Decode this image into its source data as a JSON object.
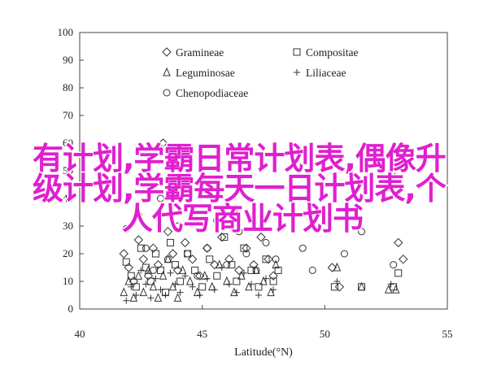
{
  "chart_data": {
    "type": "scatter",
    "title": "",
    "xlabel": "Latitude(°N)",
    "ylabel": "",
    "xlim": [
      40,
      55
    ],
    "ylim": [
      0,
      100
    ],
    "xticks": [
      "40",
      "45",
      "50",
      "55"
    ],
    "yticks": [
      "0",
      "10",
      "20",
      "30",
      "40",
      "50",
      "60",
      "70",
      "80",
      "90",
      "100"
    ],
    "grid": false,
    "legend_position": "top-center",
    "series": [
      {
        "name": "Gramineae",
        "marker": "diamond",
        "points": [
          [
            41.8,
            20
          ],
          [
            42.0,
            15
          ],
          [
            42.2,
            10
          ],
          [
            42.4,
            25
          ],
          [
            42.6,
            18
          ],
          [
            42.8,
            12
          ],
          [
            43.0,
            22
          ],
          [
            43.2,
            16
          ],
          [
            43.4,
            60
          ],
          [
            43.6,
            28
          ],
          [
            43.8,
            20
          ],
          [
            44.0,
            14
          ],
          [
            44.3,
            24
          ],
          [
            44.6,
            18
          ],
          [
            44.9,
            12
          ],
          [
            45.2,
            22
          ],
          [
            45.5,
            16
          ],
          [
            45.8,
            26
          ],
          [
            46.1,
            18
          ],
          [
            46.3,
            36
          ],
          [
            46.5,
            14
          ],
          [
            46.8,
            22
          ],
          [
            47.1,
            16
          ],
          [
            47.4,
            26
          ],
          [
            47.7,
            18
          ],
          [
            47.9,
            12
          ],
          [
            50.3,
            15
          ],
          [
            50.6,
            8
          ],
          [
            52.8,
            48
          ],
          [
            53.0,
            24
          ],
          [
            53.2,
            18
          ]
        ]
      },
      {
        "name": "Compositae",
        "marker": "square",
        "points": [
          [
            41.9,
            17
          ],
          [
            42.1,
            12
          ],
          [
            42.3,
            8
          ],
          [
            42.5,
            22
          ],
          [
            42.7,
            15
          ],
          [
            42.9,
            10
          ],
          [
            43.1,
            20
          ],
          [
            43.3,
            14
          ],
          [
            43.5,
            6
          ],
          [
            43.7,
            24
          ],
          [
            43.9,
            16
          ],
          [
            44.1,
            10
          ],
          [
            44.4,
            20
          ],
          [
            44.7,
            14
          ],
          [
            45.0,
            8
          ],
          [
            45.3,
            18
          ],
          [
            45.6,
            12
          ],
          [
            45.9,
            26
          ],
          [
            46.2,
            16
          ],
          [
            46.4,
            10
          ],
          [
            46.7,
            22
          ],
          [
            47.0,
            14
          ],
          [
            47.3,
            8
          ],
          [
            47.6,
            18
          ],
          [
            47.9,
            10
          ],
          [
            48.1,
            14
          ],
          [
            50.4,
            8
          ],
          [
            51.5,
            8
          ],
          [
            52.8,
            8
          ],
          [
            53.0,
            13
          ]
        ]
      },
      {
        "name": "Leguminosae",
        "marker": "triangle",
        "points": [
          [
            41.8,
            6
          ],
          [
            42.0,
            10
          ],
          [
            42.2,
            4
          ],
          [
            42.4,
            12
          ],
          [
            42.6,
            6
          ],
          [
            42.8,
            14
          ],
          [
            43.0,
            8
          ],
          [
            43.2,
            4
          ],
          [
            43.4,
            12
          ],
          [
            43.6,
            18
          ],
          [
            43.8,
            8
          ],
          [
            44.0,
            4
          ],
          [
            44.2,
            14
          ],
          [
            44.5,
            10
          ],
          [
            44.8,
            6
          ],
          [
            45.1,
            12
          ],
          [
            45.4,
            8
          ],
          [
            45.7,
            16
          ],
          [
            46.0,
            10
          ],
          [
            46.3,
            6
          ],
          [
            46.6,
            12
          ],
          [
            46.9,
            8
          ],
          [
            47.2,
            14
          ],
          [
            47.5,
            10
          ],
          [
            47.8,
            6
          ],
          [
            48.0,
            16
          ],
          [
            50.5,
            15
          ],
          [
            51.5,
            8
          ],
          [
            52.6,
            7
          ],
          [
            52.9,
            7
          ]
        ]
      },
      {
        "name": "Liliaceae",
        "marker": "plus",
        "points": [
          [
            41.9,
            3
          ],
          [
            42.1,
            8
          ],
          [
            42.3,
            5
          ],
          [
            42.5,
            14
          ],
          [
            42.7,
            9
          ],
          [
            42.9,
            4
          ],
          [
            43.1,
            11
          ],
          [
            43.3,
            7
          ],
          [
            43.5,
            5
          ],
          [
            43.7,
            13
          ],
          [
            43.9,
            9
          ],
          [
            44.1,
            6
          ],
          [
            44.3,
            12
          ],
          [
            44.6,
            8
          ],
          [
            44.9,
            5
          ],
          [
            45.2,
            11
          ],
          [
            45.5,
            7
          ],
          [
            45.8,
            15
          ],
          [
            46.1,
            9
          ],
          [
            46.4,
            6
          ],
          [
            46.7,
            13
          ],
          [
            47.0,
            9
          ],
          [
            47.3,
            5
          ],
          [
            47.6,
            11
          ],
          [
            47.9,
            7
          ],
          [
            50.5,
            10
          ],
          [
            52.7,
            9
          ]
        ]
      },
      {
        "name": "Chenopodiaceae",
        "marker": "circle",
        "points": [
          [
            41.9,
            29
          ],
          [
            42.4,
            34
          ],
          [
            42.7,
            22
          ],
          [
            43.0,
            14
          ],
          [
            43.3,
            40
          ],
          [
            43.6,
            18
          ],
          [
            44.0,
            30
          ],
          [
            44.4,
            20
          ],
          [
            44.8,
            12
          ],
          [
            45.2,
            22
          ],
          [
            45.6,
            32
          ],
          [
            46.0,
            16
          ],
          [
            46.5,
            28
          ],
          [
            46.8,
            20
          ],
          [
            47.2,
            14
          ],
          [
            47.6,
            24
          ],
          [
            48.0,
            18
          ],
          [
            49.1,
            22
          ],
          [
            49.5,
            14
          ],
          [
            50.8,
            20
          ],
          [
            51.5,
            28
          ],
          [
            52.8,
            16
          ]
        ]
      }
    ]
  },
  "overlay": {
    "line1": "有计划,学霸日常计划表,偶像升",
    "line2": "级计划,学霸每天一日计划表,个",
    "line3": "人代写商业计划书"
  }
}
